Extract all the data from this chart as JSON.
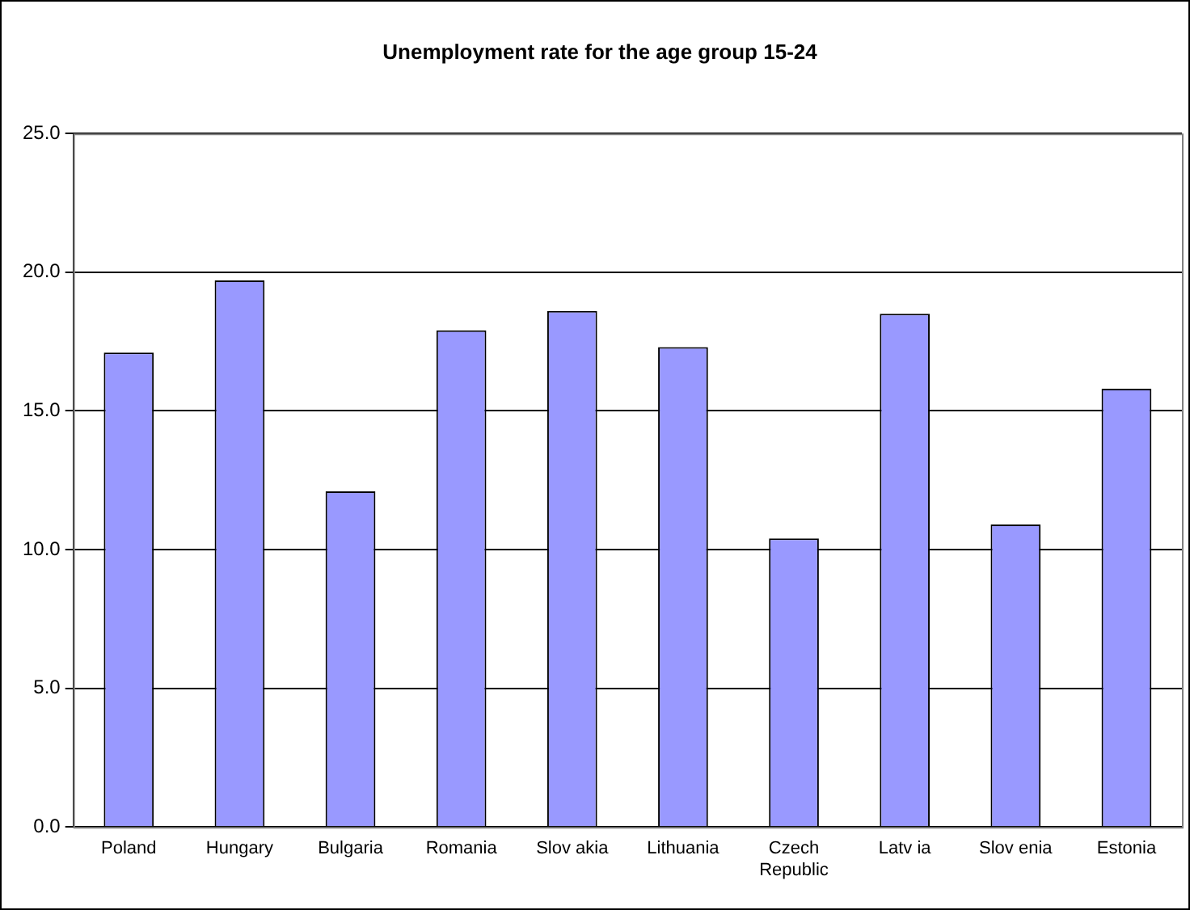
{
  "chart_data": {
    "type": "bar",
    "title": "Unemployment rate for the age group 15-24",
    "categories": [
      "Poland",
      "Hungary",
      "Bulgaria",
      "Romania",
      "Slov akia",
      "Lithuania",
      "Czech Republic",
      "Latv ia",
      "Slov enia",
      "Estonia"
    ],
    "values": [
      17.1,
      19.7,
      12.1,
      17.9,
      18.6,
      17.3,
      10.4,
      18.5,
      10.9,
      15.8
    ],
    "color": "#9999ff",
    "ylim": [
      0,
      25
    ],
    "yticks": [
      {
        "value": 0,
        "label": "0.0"
      },
      {
        "value": 5,
        "label": "5.0"
      },
      {
        "value": 10,
        "label": "10.0"
      },
      {
        "value": 15,
        "label": "15.0"
      },
      {
        "value": 20,
        "label": "20.0"
      },
      {
        "value": 25,
        "label": "25.0"
      }
    ],
    "grid": "y",
    "legend": false
  }
}
